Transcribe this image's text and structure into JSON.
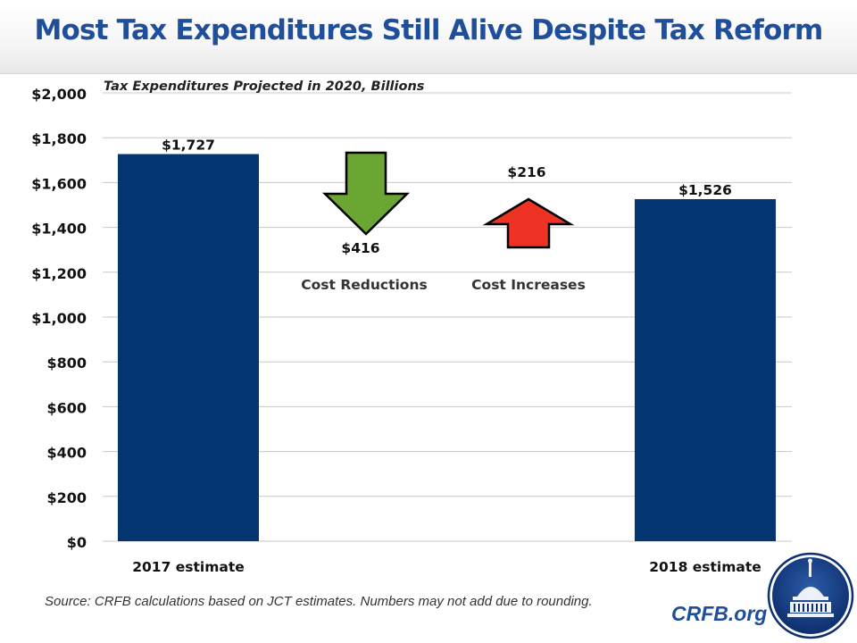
{
  "header": {
    "title": "Most Tax Expenditures Still Alive Despite Tax Reform"
  },
  "footer": {
    "source": "Source: CRFB calculations based on JCT estimates. Numbers may not add due to rounding.",
    "site": "CRFB.org",
    "logo": "capitol-dome-logo"
  },
  "colors": {
    "bar": "#033571",
    "reduction": "#6aa631",
    "increase": "#ee3224",
    "title": "#1f4e9b",
    "grid": "#c8c8c8"
  },
  "chart_data": {
    "type": "bar",
    "subtype": "waterfall",
    "title": "Tax Expenditures  Projected  in 2020, Billions",
    "xlabel": "",
    "ylabel": "",
    "ylim": [
      0,
      2000
    ],
    "yticks": [
      0,
      200,
      400,
      600,
      800,
      1000,
      1200,
      1400,
      1600,
      1800,
      2000
    ],
    "ytick_labels": [
      "$0",
      "$200",
      "$400",
      "$600",
      "$800",
      "$1,000",
      "$1,200",
      "$1,400",
      "$1,600",
      "$1,800",
      "$2,000"
    ],
    "grid": true,
    "categories": [
      "2017 estimate",
      "Cost Reductions",
      "Cost Increases",
      "2018 estimate"
    ],
    "values": [
      1727,
      -416,
      216,
      1526
    ],
    "data_labels": [
      "$1,727",
      "$416",
      "$216",
      "$1,526"
    ],
    "marks": [
      "bar",
      "down-arrow",
      "up-arrow",
      "bar"
    ]
  }
}
